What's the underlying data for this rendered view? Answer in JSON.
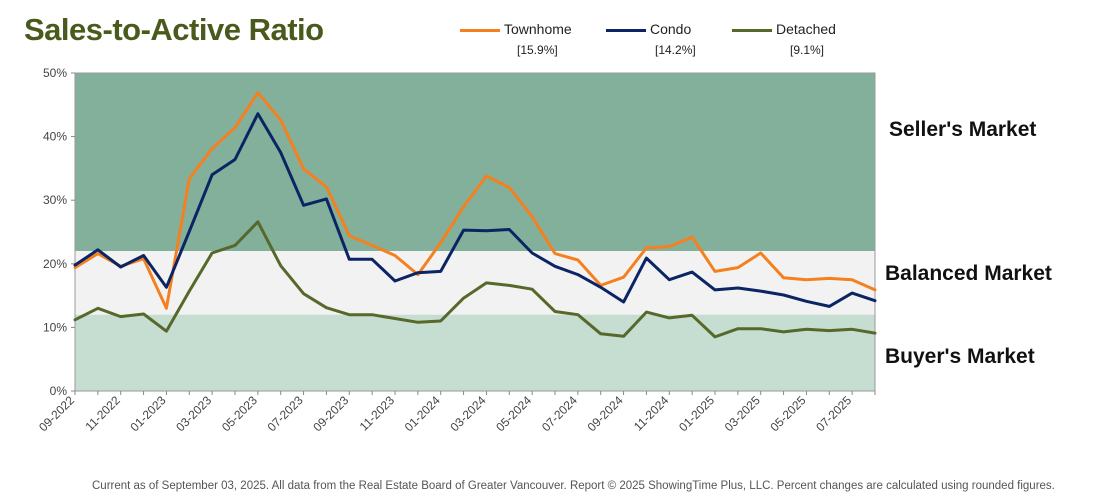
{
  "title": "Sales-to-Active Ratio",
  "legend": [
    {
      "name": "Townhome",
      "pct": "[15.9%]",
      "color": "#f4801f"
    },
    {
      "name": "Condo",
      "pct": "[14.2%]",
      "color": "#0b2463"
    },
    {
      "name": "Detached",
      "pct": "[9.1%]",
      "color": "#56692b"
    }
  ],
  "zones": {
    "sellers": "Seller's Market",
    "balanced": "Balanced Market",
    "buyers": "Buyer's Market"
  },
  "footer": "Current as of September 03, 2025. All data from the Real Estate Board of Greater Vancouver.  Report © 2025 ShowingTime Plus, LLC. Percent changes are calculated using rounded figures.",
  "chart_data": {
    "type": "line",
    "ylim": [
      0,
      50
    ],
    "yticks": [
      "0%",
      "10%",
      "20%",
      "30%",
      "40%",
      "50%"
    ],
    "zone_bounds": {
      "buyers_max": 12,
      "balanced_max": 22
    },
    "zone_colors": {
      "sellers": "#82b09a",
      "balanced": "#f2f2f2",
      "buyers": "#c6ddd2"
    },
    "x": [
      "09-2022",
      "10-2022",
      "11-2022",
      "12-2022",
      "01-2023",
      "02-2023",
      "03-2023",
      "04-2023",
      "05-2023",
      "06-2023",
      "07-2023",
      "08-2023",
      "09-2023",
      "10-2023",
      "11-2023",
      "12-2023",
      "01-2024",
      "02-2024",
      "03-2024",
      "04-2024",
      "05-2024",
      "06-2024",
      "07-2024",
      "08-2024",
      "09-2024",
      "10-2024",
      "11-2024",
      "12-2024",
      "01-2025",
      "02-2025",
      "03-2025",
      "04-2025",
      "05-2025",
      "06-2025",
      "07-2025",
      "08-2025"
    ],
    "x_tick_labels": [
      "09-2022",
      "11-2022",
      "01-2023",
      "03-2023",
      "05-2023",
      "07-2023",
      "09-2023",
      "11-2023",
      "01-2024",
      "03-2024",
      "05-2024",
      "07-2024",
      "09-2024",
      "11-2024",
      "01-2025",
      "03-2025",
      "05-2025",
      "07-2025"
    ],
    "series": [
      {
        "name": "Townhome",
        "color": "#f4801f",
        "values": [
          19.4,
          21.6,
          19.6,
          20.8,
          13.0,
          33.4,
          38.1,
          41.4,
          46.9,
          42.6,
          34.9,
          32.1,
          24.4,
          22.9,
          21.3,
          18.3,
          23.3,
          29.0,
          33.8,
          32.0,
          27.4,
          21.6,
          20.6,
          16.6,
          17.9,
          22.5,
          22.7,
          24.2,
          18.8,
          19.4,
          21.7,
          17.8,
          17.5,
          17.7,
          17.5,
          15.9
        ]
      },
      {
        "name": "Condo",
        "color": "#0b2463",
        "values": [
          19.8,
          22.2,
          19.5,
          21.3,
          16.3,
          25.1,
          34.0,
          36.4,
          43.6,
          37.5,
          29.2,
          30.2,
          20.7,
          20.7,
          17.3,
          18.6,
          18.8,
          25.3,
          25.2,
          25.4,
          21.7,
          19.6,
          18.3,
          16.3,
          14.0,
          20.9,
          17.5,
          18.7,
          15.9,
          16.2,
          15.7,
          15.1,
          14.1,
          13.3,
          15.4,
          14.2
        ]
      },
      {
        "name": "Detached",
        "color": "#56692b",
        "values": [
          11.2,
          13.0,
          11.7,
          12.1,
          9.4,
          15.7,
          21.7,
          22.9,
          26.6,
          19.7,
          15.3,
          13.1,
          12.0,
          12.0,
          11.4,
          10.8,
          11.0,
          14.6,
          17.0,
          16.6,
          16.0,
          12.5,
          12.0,
          9.0,
          8.6,
          12.4,
          11.5,
          11.9,
          8.5,
          9.8,
          9.8,
          9.3,
          9.7,
          9.5,
          9.7,
          9.1
        ]
      }
    ]
  }
}
